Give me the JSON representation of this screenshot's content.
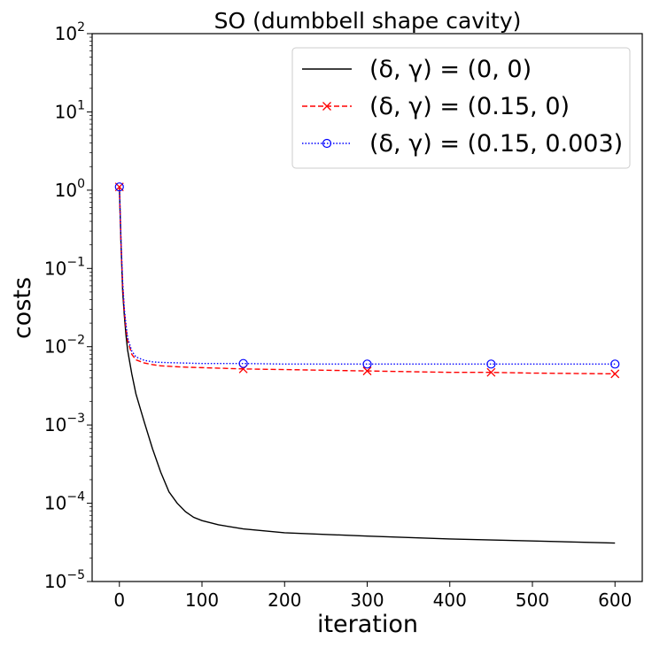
{
  "chart_data": {
    "type": "line",
    "title": "SO (dumbbell shape cavity)",
    "xlabel": "iteration",
    "ylabel": "costs",
    "xlim": [
      -33,
      633
    ],
    "ylim": [
      1e-05,
      100
    ],
    "yscale": "log",
    "xticks": [
      0,
      100,
      200,
      300,
      400,
      500,
      600
    ],
    "xtick_labels": [
      "0",
      "100",
      "200",
      "300",
      "400",
      "500",
      "600"
    ],
    "yticks": [
      {
        "value": 100,
        "base": "10",
        "exp": "2"
      },
      {
        "value": 10,
        "base": "10",
        "exp": "1"
      },
      {
        "value": 1,
        "base": "10",
        "exp": "0"
      },
      {
        "value": 0.1,
        "base": "10",
        "exp": "−1"
      },
      {
        "value": 0.01,
        "base": "10",
        "exp": "−2"
      },
      {
        "value": 0.001,
        "base": "10",
        "exp": "−3"
      },
      {
        "value": 0.0001,
        "base": "10",
        "exp": "−4"
      },
      {
        "value": 1e-05,
        "base": "10",
        "exp": "−5"
      }
    ],
    "legend_position": "top-right",
    "series": [
      {
        "name": "(δ, γ) = (0, 0)",
        "color": "#000000",
        "linestyle": "solid",
        "marker": "none",
        "x": [
          0,
          2,
          4,
          6,
          8,
          10,
          15,
          20,
          30,
          40,
          50,
          60,
          70,
          80,
          90,
          100,
          120,
          150,
          200,
          300,
          400,
          500,
          600
        ],
        "y": [
          1.1,
          0.2,
          0.05,
          0.025,
          0.014,
          0.009,
          0.0045,
          0.0025,
          0.0011,
          0.0005,
          0.00025,
          0.00014,
          0.0001,
          7.8e-05,
          6.6e-05,
          6e-05,
          5.3e-05,
          4.7e-05,
          4.2e-05,
          3.8e-05,
          3.5e-05,
          3.3e-05,
          3.1e-05
        ]
      },
      {
        "name": "(δ, γ) = (0.15, 0)",
        "color": "#ff0000",
        "linestyle": "dashed",
        "marker": "x",
        "marker_x": [
          0,
          150,
          300,
          450,
          600
        ],
        "x": [
          0,
          2,
          4,
          6,
          8,
          10,
          15,
          20,
          30,
          40,
          50,
          75,
          100,
          150,
          200,
          300,
          400,
          450,
          500,
          600
        ],
        "y": [
          1.1,
          0.2,
          0.06,
          0.028,
          0.017,
          0.012,
          0.008,
          0.0068,
          0.0062,
          0.0059,
          0.0057,
          0.0055,
          0.0054,
          0.0052,
          0.0051,
          0.0049,
          0.0047,
          0.0047,
          0.0046,
          0.0045
        ]
      },
      {
        "name": "(δ, γ) = (0.15, 0.003)",
        "color": "#0000ff",
        "linestyle": "dotted",
        "marker": "o",
        "marker_x": [
          0,
          150,
          300,
          450,
          600
        ],
        "x": [
          0,
          2,
          4,
          6,
          8,
          10,
          15,
          20,
          30,
          40,
          50,
          75,
          100,
          150,
          200,
          300,
          400,
          450,
          500,
          600
        ],
        "y": [
          1.1,
          0.22,
          0.065,
          0.03,
          0.019,
          0.013,
          0.0088,
          0.0074,
          0.0067,
          0.0064,
          0.0063,
          0.0062,
          0.0061,
          0.0061,
          0.006,
          0.006,
          0.006,
          0.006,
          0.006,
          0.006
        ]
      }
    ]
  }
}
